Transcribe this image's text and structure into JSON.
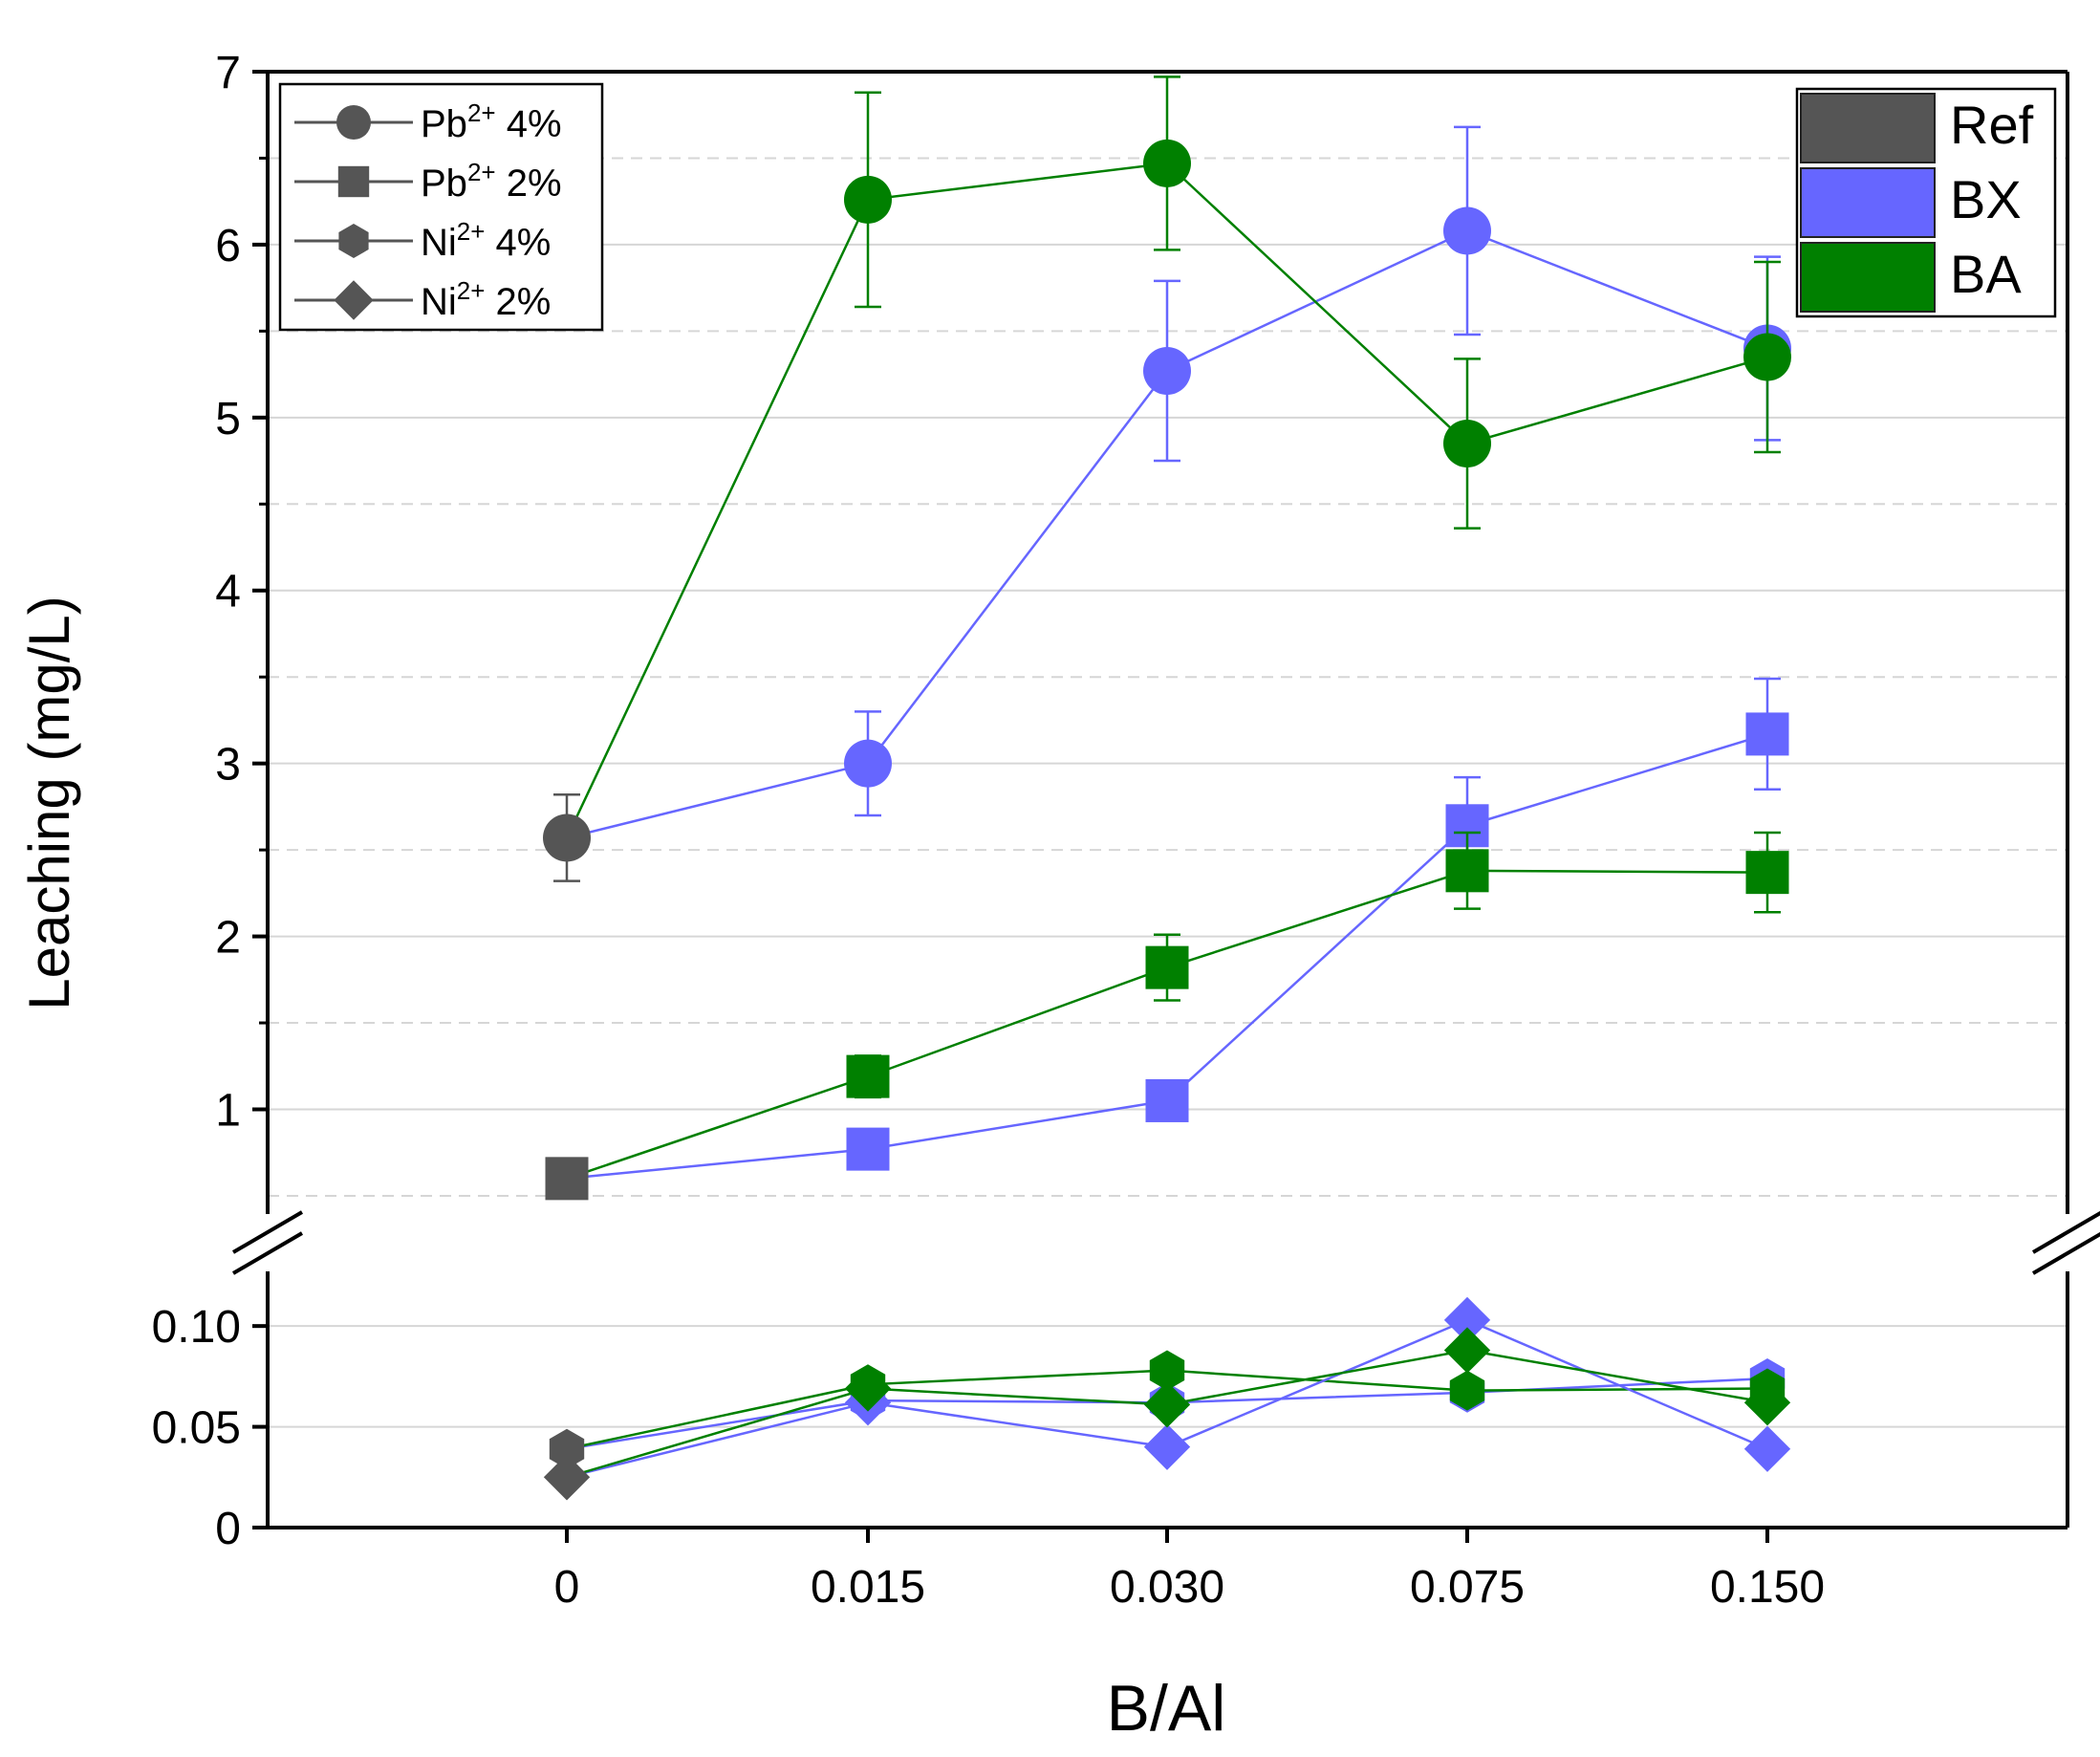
{
  "chart_data": {
    "type": "line",
    "title": "",
    "xlabel": "B/Al",
    "ylabel": "Leaching (mg/L)",
    "categories": [
      "0",
      "0.015",
      "0.030",
      "0.075",
      "0.150"
    ],
    "y_upper_ticks": [
      "1",
      "2",
      "3",
      "4",
      "5",
      "6",
      "7"
    ],
    "y_lower_ticks": [
      "0",
      "0.05",
      "0.10"
    ],
    "ylim_upper": [
      0.45,
      7
    ],
    "ylim_lower": [
      0,
      0.12
    ],
    "axis_break": "between 0.12 and 0.45",
    "colors": {
      "Ref": "#555555",
      "BX": "#6666ff",
      "BA": "#008000"
    },
    "legend_ions": [
      {
        "label": "Pb",
        "sup": "2+",
        "suffix": " 4%",
        "marker": "circle"
      },
      {
        "label": "Pb",
        "sup": "2+",
        "suffix": " 2%",
        "marker": "square"
      },
      {
        "label": "Ni",
        "sup": "2+",
        "suffix": " 4%",
        "marker": "hexagon"
      },
      {
        "label": "Ni",
        "sup": "2+",
        "suffix": " 2%",
        "marker": "diamond"
      }
    ],
    "legend_series": [
      {
        "label": "Ref",
        "color": "#555555"
      },
      {
        "label": "BX",
        "color": "#6666ff"
      },
      {
        "label": "BA",
        "color": "#008000"
      }
    ],
    "series": [
      {
        "name": "Pb2+ 4% BX",
        "group": "BX",
        "marker": "circle",
        "panel": "upper",
        "values": [
          2.57,
          3.0,
          5.27,
          6.08,
          5.4
        ],
        "errors": [
          0.25,
          0.3,
          0.52,
          0.6,
          0.53
        ]
      },
      {
        "name": "Pb2+ 4% BA",
        "group": "BA",
        "marker": "circle",
        "panel": "upper",
        "values": [
          2.57,
          6.26,
          6.47,
          4.85,
          5.35
        ],
        "errors": [
          0.25,
          0.62,
          0.5,
          0.49,
          0.55
        ]
      },
      {
        "name": "Pb2+ 2% BX",
        "group": "BX",
        "marker": "square",
        "panel": "upper",
        "values": [
          0.6,
          0.77,
          1.05,
          2.64,
          3.17
        ],
        "errors": [
          0,
          0,
          0.1,
          0.28,
          0.32
        ]
      },
      {
        "name": "Pb2+ 2% BA",
        "group": "BA",
        "marker": "square",
        "panel": "upper",
        "values": [
          0.6,
          1.19,
          1.82,
          2.38,
          2.37
        ],
        "errors": [
          0,
          0.12,
          0.19,
          0.22,
          0.23
        ]
      },
      {
        "name": "Ni2+ 4% BX",
        "group": "BX",
        "marker": "hexagon",
        "panel": "lower",
        "values": [
          0.039,
          0.063,
          0.062,
          0.067,
          0.074
        ],
        "errors": [
          0,
          0,
          0,
          0,
          0
        ]
      },
      {
        "name": "Ni2+ 4% BA",
        "group": "BA",
        "marker": "hexagon",
        "panel": "lower",
        "values": [
          0.039,
          0.071,
          0.078,
          0.068,
          0.069
        ],
        "errors": [
          0,
          0,
          0,
          0,
          0
        ]
      },
      {
        "name": "Ni2+ 2% BX",
        "group": "BX",
        "marker": "diamond",
        "panel": "lower",
        "values": [
          0.025,
          0.062,
          0.04,
          0.103,
          0.039
        ],
        "errors": [
          0,
          0,
          0,
          0,
          0
        ]
      },
      {
        "name": "Ni2+ 2% BA",
        "group": "BA",
        "marker": "diamond",
        "panel": "lower",
        "values": [
          0.025,
          0.069,
          0.061,
          0.088,
          0.062
        ],
        "errors": [
          0,
          0,
          0,
          0,
          0
        ]
      }
    ],
    "reference_points": [
      {
        "name": "Pb2+ 4% Ref",
        "marker": "circle",
        "panel": "upper",
        "x": "0",
        "value": 2.57,
        "error": 0.25
      },
      {
        "name": "Pb2+ 2% Ref",
        "marker": "square",
        "panel": "upper",
        "x": "0",
        "value": 0.6,
        "error": 0
      },
      {
        "name": "Ni2+ 4% Ref",
        "marker": "hexagon",
        "panel": "lower",
        "x": "0",
        "value": 0.039,
        "error": 0
      },
      {
        "name": "Ni2+ 2% Ref",
        "marker": "diamond",
        "panel": "lower",
        "x": "0",
        "value": 0.025,
        "error": 0
      }
    ]
  }
}
